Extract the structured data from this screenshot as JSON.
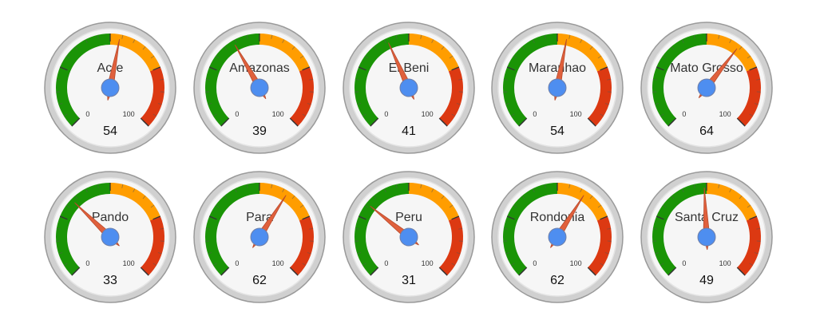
{
  "chart_data": [
    {
      "type": "gauge",
      "title": "Acre",
      "value": 54,
      "ylim": [
        0,
        100
      ],
      "yticks": [
        0,
        100
      ],
      "bands": [
        {
          "from": 0,
          "to": 50,
          "color": "#1a9406"
        },
        {
          "from": 50,
          "to": 75,
          "color": "#ff9d00"
        },
        {
          "from": 75,
          "to": 100,
          "color": "#dc3912"
        }
      ]
    },
    {
      "type": "gauge",
      "title": "Amazonas",
      "value": 39,
      "ylim": [
        0,
        100
      ],
      "yticks": [
        0,
        100
      ],
      "bands": [
        {
          "from": 0,
          "to": 50,
          "color": "#1a9406"
        },
        {
          "from": 50,
          "to": 75,
          "color": "#ff9d00"
        },
        {
          "from": 75,
          "to": 100,
          "color": "#dc3912"
        }
      ]
    },
    {
      "type": "gauge",
      "title": "El Beni",
      "value": 41,
      "ylim": [
        0,
        100
      ],
      "yticks": [
        0,
        100
      ],
      "bands": [
        {
          "from": 0,
          "to": 50,
          "color": "#1a9406"
        },
        {
          "from": 50,
          "to": 75,
          "color": "#ff9d00"
        },
        {
          "from": 75,
          "to": 100,
          "color": "#dc3912"
        }
      ]
    },
    {
      "type": "gauge",
      "title": "Maranhao",
      "value": 54,
      "ylim": [
        0,
        100
      ],
      "yticks": [
        0,
        100
      ],
      "bands": [
        {
          "from": 0,
          "to": 50,
          "color": "#1a9406"
        },
        {
          "from": 50,
          "to": 75,
          "color": "#ff9d00"
        },
        {
          "from": 75,
          "to": 100,
          "color": "#dc3912"
        }
      ]
    },
    {
      "type": "gauge",
      "title": "Mato Grosso",
      "value": 64,
      "ylim": [
        0,
        100
      ],
      "yticks": [
        0,
        100
      ],
      "bands": [
        {
          "from": 0,
          "to": 50,
          "color": "#1a9406"
        },
        {
          "from": 50,
          "to": 75,
          "color": "#ff9d00"
        },
        {
          "from": 75,
          "to": 100,
          "color": "#dc3912"
        }
      ]
    },
    {
      "type": "gauge",
      "title": "Pando",
      "value": 33,
      "ylim": [
        0,
        100
      ],
      "yticks": [
        0,
        100
      ],
      "bands": [
        {
          "from": 0,
          "to": 50,
          "color": "#1a9406"
        },
        {
          "from": 50,
          "to": 75,
          "color": "#ff9d00"
        },
        {
          "from": 75,
          "to": 100,
          "color": "#dc3912"
        }
      ]
    },
    {
      "type": "gauge",
      "title": "Para",
      "value": 62,
      "ylim": [
        0,
        100
      ],
      "yticks": [
        0,
        100
      ],
      "bands": [
        {
          "from": 0,
          "to": 50,
          "color": "#1a9406"
        },
        {
          "from": 50,
          "to": 75,
          "color": "#ff9d00"
        },
        {
          "from": 75,
          "to": 100,
          "color": "#dc3912"
        }
      ]
    },
    {
      "type": "gauge",
      "title": "Peru",
      "value": 31,
      "ylim": [
        0,
        100
      ],
      "yticks": [
        0,
        100
      ],
      "bands": [
        {
          "from": 0,
          "to": 50,
          "color": "#1a9406"
        },
        {
          "from": 50,
          "to": 75,
          "color": "#ff9d00"
        },
        {
          "from": 75,
          "to": 100,
          "color": "#dc3912"
        }
      ]
    },
    {
      "type": "gauge",
      "title": "Rondonia",
      "value": 62,
      "ylim": [
        0,
        100
      ],
      "yticks": [
        0,
        100
      ],
      "bands": [
        {
          "from": 0,
          "to": 50,
          "color": "#1a9406"
        },
        {
          "from": 50,
          "to": 75,
          "color": "#ff9d00"
        },
        {
          "from": 75,
          "to": 100,
          "color": "#dc3912"
        }
      ]
    },
    {
      "type": "gauge",
      "title": "Santa Cruz",
      "value": 49,
      "ylim": [
        0,
        100
      ],
      "yticks": [
        0,
        100
      ],
      "bands": [
        {
          "from": 0,
          "to": 50,
          "color": "#1a9406"
        },
        {
          "from": 50,
          "to": 75,
          "color": "#ff9d00"
        },
        {
          "from": 75,
          "to": 100,
          "color": "#dc3912"
        }
      ]
    }
  ]
}
